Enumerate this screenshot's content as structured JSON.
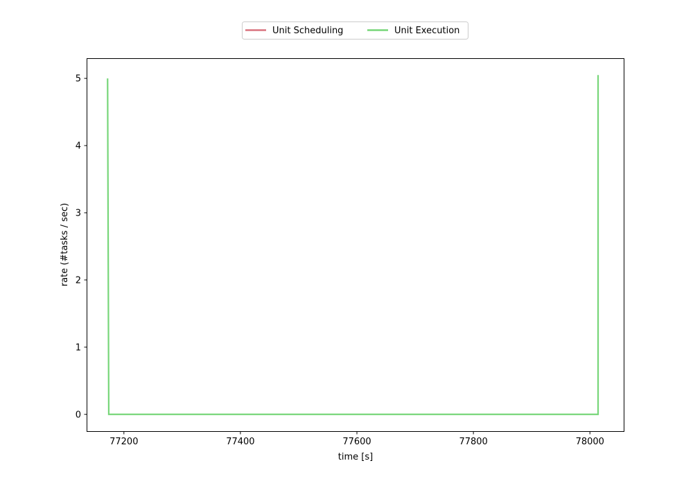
{
  "chart_data": {
    "type": "line",
    "title": "",
    "xlabel": "time [s]",
    "ylabel": "rate (#tasks / sec)",
    "xlim": [
      77136,
      78058
    ],
    "ylim": [
      -0.25,
      5.3
    ],
    "xticks": [
      77200,
      77400,
      77600,
      77800,
      78000
    ],
    "yticks": [
      0,
      1,
      2,
      3,
      4,
      5
    ],
    "grid": false,
    "legend_position": "top-center",
    "series": [
      {
        "name": "Unit Scheduling",
        "color": "#d9737f",
        "x": [],
        "y": []
      },
      {
        "name": "Unit Execution",
        "color": "#77d679",
        "x": [
          77172,
          77174,
          78014,
          78014
        ],
        "y": [
          5.0,
          0.0,
          0.0,
          5.05
        ]
      }
    ]
  }
}
